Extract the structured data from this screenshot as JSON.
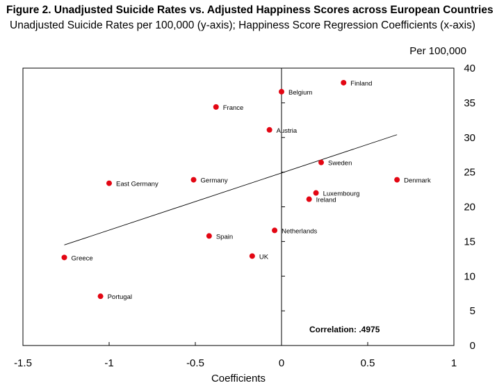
{
  "chart_data": {
    "type": "scatter",
    "title": "Figure 2. Unadjusted Suicide Rates vs. Adjusted Happiness Scores across European Countries",
    "subtitle": "Unadjusted Suicide Rates per 100,000 (y-axis); Happiness Score Regression Coefficients (x-axis)",
    "xlabel": "Coefficients",
    "ylabel": "Per 100,000",
    "xlim": [
      -1.5,
      1
    ],
    "ylim": [
      0,
      40
    ],
    "x_ticks": [
      "-1.5",
      "-1",
      "-0.5",
      "0",
      "0.5",
      "1"
    ],
    "x_tick_values": [
      -1.5,
      -1,
      -0.5,
      0,
      0.5,
      1
    ],
    "y_ticks": [
      "0",
      "5",
      "10",
      "15",
      "20",
      "25",
      "30",
      "35",
      "40"
    ],
    "y_tick_values": [
      0,
      5,
      10,
      15,
      20,
      25,
      30,
      35,
      40
    ],
    "points": [
      {
        "name": "Finland",
        "x": 0.36,
        "y": 37.9
      },
      {
        "name": "Belgium",
        "x": 0.0,
        "y": 36.6
      },
      {
        "name": "France",
        "x": -0.38,
        "y": 34.4
      },
      {
        "name": "Austria",
        "x": -0.07,
        "y": 31.1
      },
      {
        "name": "Sweden",
        "x": 0.23,
        "y": 26.4
      },
      {
        "name": "Denmark",
        "x": 0.67,
        "y": 23.9
      },
      {
        "name": "Germany",
        "x": -0.51,
        "y": 23.9
      },
      {
        "name": "East Germany",
        "x": -1.0,
        "y": 23.4
      },
      {
        "name": "Luxembourg",
        "x": 0.2,
        "y": 22.0
      },
      {
        "name": "Ireland",
        "x": 0.16,
        "y": 21.1
      },
      {
        "name": "Netherlands",
        "x": -0.04,
        "y": 16.6
      },
      {
        "name": "Spain",
        "x": -0.42,
        "y": 15.8
      },
      {
        "name": "UK",
        "x": -0.17,
        "y": 12.9
      },
      {
        "name": "Greece",
        "x": -1.26,
        "y": 12.7
      },
      {
        "name": "Portugal",
        "x": -1.05,
        "y": 7.1
      }
    ],
    "trendline": {
      "x": [
        -1.26,
        0.67
      ],
      "y": [
        14.5,
        30.4
      ]
    },
    "annotation": "Correlation: .4975",
    "colors": {
      "points": "#e30613",
      "line": "#000000"
    }
  }
}
